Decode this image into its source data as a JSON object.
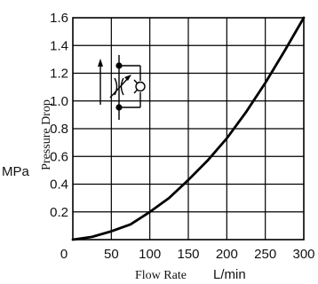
{
  "chart_data": {
    "type": "line",
    "xlabel": "Flow Rate",
    "xunit": "L/min",
    "ylabel": "Pressure Drop",
    "yunit": "MPa",
    "xlim": [
      0,
      300
    ],
    "ylim": [
      0,
      1.6
    ],
    "grid": true,
    "x_ticks": [
      0,
      50,
      100,
      150,
      200,
      250,
      300
    ],
    "x_tick_labels": [
      "0",
      "50",
      "100",
      "150",
      "200",
      "250",
      "300"
    ],
    "y_ticks": [
      0.2,
      0.4,
      0.6,
      0.8,
      1.0,
      1.2,
      1.4,
      1.6
    ],
    "y_tick_labels": [
      "0.2",
      "0.4",
      "0.6",
      "0.8",
      "1.0",
      "1.2",
      "1.4",
      "1.6"
    ],
    "series": [
      {
        "x": [
          0,
          25,
          50,
          75,
          100,
          125,
          150,
          175,
          200,
          225,
          250,
          275,
          300
        ],
        "y": [
          0.0,
          0.02,
          0.06,
          0.11,
          0.2,
          0.3,
          0.43,
          0.57,
          0.73,
          0.92,
          1.13,
          1.36,
          1.6
        ]
      }
    ],
    "inset_symbol": "flow-control-valve-with-check-valve"
  }
}
